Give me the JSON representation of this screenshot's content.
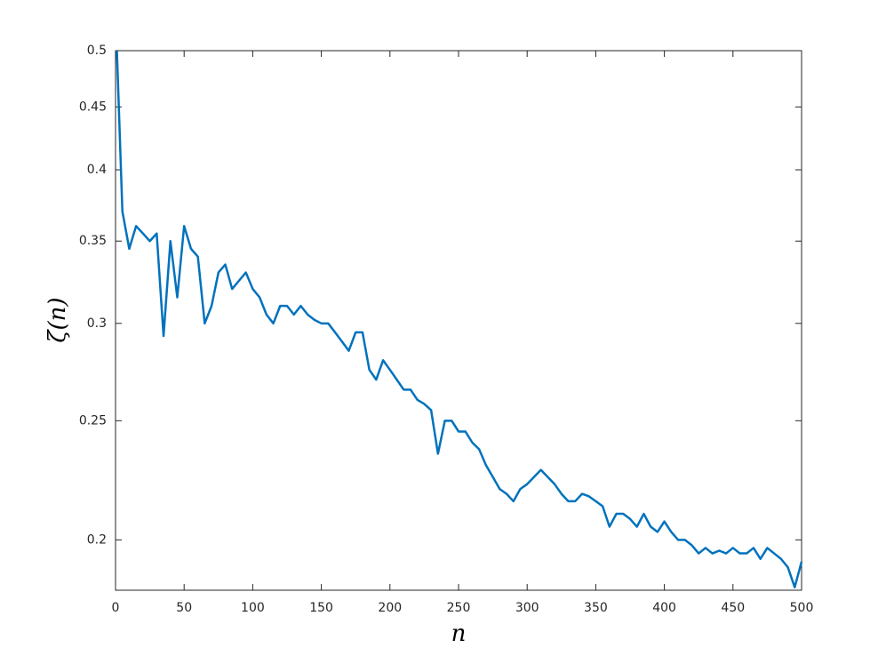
{
  "chart_data": {
    "type": "line",
    "xlabel": "n",
    "ylabel": "ζ(n)",
    "x": [
      1,
      5,
      10,
      15,
      20,
      25,
      30,
      35,
      40,
      45,
      50,
      55,
      60,
      65,
      70,
      75,
      80,
      85,
      90,
      95,
      100,
      105,
      110,
      115,
      120,
      125,
      130,
      135,
      140,
      145,
      150,
      155,
      160,
      165,
      170,
      175,
      180,
      185,
      190,
      195,
      200,
      205,
      210,
      215,
      220,
      225,
      230,
      235,
      240,
      245,
      250,
      255,
      260,
      265,
      270,
      275,
      280,
      285,
      290,
      295,
      300,
      305,
      310,
      315,
      320,
      325,
      330,
      335,
      340,
      345,
      350,
      355,
      360,
      365,
      370,
      375,
      380,
      385,
      390,
      395,
      400,
      405,
      410,
      415,
      420,
      425,
      430,
      435,
      440,
      445,
      450,
      455,
      460,
      465,
      470,
      475,
      480,
      485,
      490,
      495,
      500
    ],
    "series": [
      {
        "name": "ζ(n)",
        "color": "#0072bd",
        "values": [
          0.5,
          0.37,
          0.345,
          0.36,
          0.355,
          0.35,
          0.355,
          0.293,
          0.35,
          0.315,
          0.36,
          0.345,
          0.34,
          0.3,
          0.31,
          0.33,
          0.335,
          0.32,
          0.325,
          0.33,
          0.32,
          0.315,
          0.305,
          0.3,
          0.31,
          0.31,
          0.305,
          0.31,
          0.305,
          0.302,
          0.3,
          0.3,
          0.295,
          0.29,
          0.285,
          0.295,
          0.295,
          0.275,
          0.27,
          0.28,
          0.275,
          0.27,
          0.265,
          0.265,
          0.26,
          0.258,
          0.255,
          0.235,
          0.25,
          0.25,
          0.245,
          0.245,
          0.24,
          0.237,
          0.23,
          0.225,
          0.22,
          0.218,
          0.215,
          0.22,
          0.222,
          0.225,
          0.228,
          0.225,
          0.222,
          0.218,
          0.215,
          0.215,
          0.218,
          0.217,
          0.215,
          0.213,
          0.205,
          0.21,
          0.21,
          0.208,
          0.205,
          0.21,
          0.205,
          0.203,
          0.207,
          0.203,
          0.2,
          0.2,
          0.198,
          0.195,
          0.197,
          0.195,
          0.196,
          0.195,
          0.197,
          0.195,
          0.195,
          0.197,
          0.193,
          0.197,
          0.195,
          0.193,
          0.19,
          0.183,
          0.192
        ]
      }
    ],
    "xlim": [
      0,
      500
    ],
    "xticks": [
      0,
      50,
      100,
      150,
      200,
      250,
      300,
      350,
      400,
      450,
      500
    ],
    "ylim": [
      0.182,
      0.5
    ],
    "yticks": [
      0.2,
      0.25,
      0.3,
      0.35,
      0.4,
      0.45,
      0.5
    ],
    "yscale": "log",
    "grid": false
  }
}
